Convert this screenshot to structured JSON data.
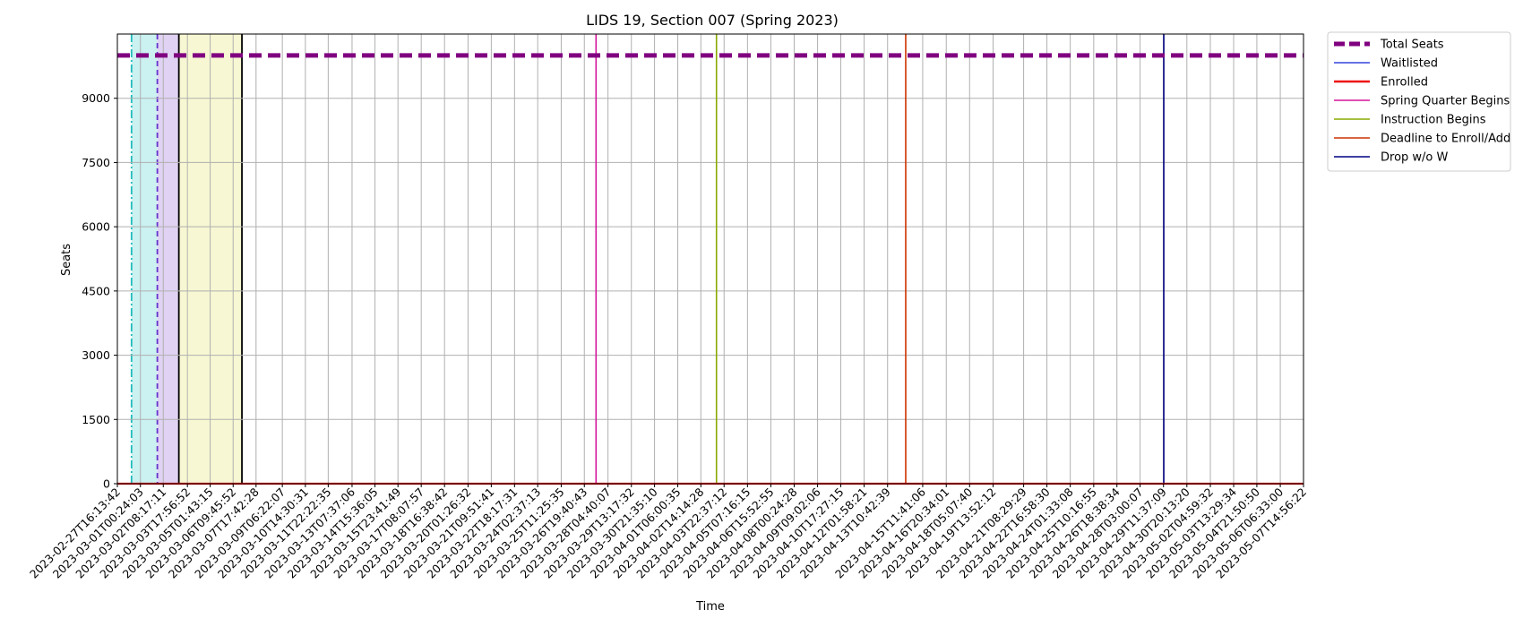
{
  "chart_data": {
    "type": "line",
    "title": "LIDS 19, Section 007 (Spring 2023)",
    "xlabel": "Time",
    "ylabel": "Seats",
    "ylim": [
      0,
      10500
    ],
    "yticks": [
      0,
      1500,
      3000,
      4500,
      6000,
      7500,
      9000
    ],
    "grid": true,
    "legend_placement": "outside-top-right",
    "x_ticks": [
      "2023-02-27T16:13:42",
      "2023-03-01T00:24:03",
      "2023-03-02T08:17:11",
      "2023-03-03T17:56:52",
      "2023-03-05T01:43:15",
      "2023-03-06T09:45:52",
      "2023-03-07T17:42:28",
      "2023-03-09T06:22:07",
      "2023-03-10T14:30:31",
      "2023-03-11T22:22:35",
      "2023-03-13T07:37:06",
      "2023-03-14T15:36:05",
      "2023-03-15T23:41:49",
      "2023-03-17T08:07:57",
      "2023-03-18T16:38:42",
      "2023-03-20T01:26:32",
      "2023-03-21T09:51:41",
      "2023-03-22T18:17:31",
      "2023-03-24T02:37:13",
      "2023-03-25T11:25:35",
      "2023-03-26T19:40:43",
      "2023-03-28T04:40:07",
      "2023-03-29T13:17:32",
      "2023-03-30T21:35:10",
      "2023-04-01T06:00:35",
      "2023-04-02T14:14:28",
      "2023-04-03T22:37:12",
      "2023-04-05T07:16:15",
      "2023-04-06T15:52:55",
      "2023-04-08T00:24:28",
      "2023-04-09T09:02:06",
      "2023-04-10T17:27:15",
      "2023-04-12T01:58:21",
      "2023-04-13T10:42:39",
      "2023-04-15T11:41:06",
      "2023-04-16T20:34:01",
      "2023-04-18T05:07:40",
      "2023-04-19T13:52:12",
      "2023-04-21T08:29:29",
      "2023-04-22T16:58:30",
      "2023-04-24T01:33:08",
      "2023-04-25T10:16:55",
      "2023-04-26T18:38:34",
      "2023-04-28T03:00:07",
      "2023-04-29T11:37:09",
      "2023-04-30T20:13:20",
      "2023-05-02T04:59:32",
      "2023-05-03T13:29:34",
      "2023-05-04T21:50:50",
      "2023-05-06T06:33:00",
      "2023-05-07T14:56:22"
    ],
    "series": [
      {
        "name": "Total Seats",
        "value": 10000,
        "color": "#800080",
        "style": "dashed-thick"
      },
      {
        "name": "Waitlisted",
        "value": 0,
        "color": "#3344dd",
        "style": "solid"
      },
      {
        "name": "Enrolled",
        "value": 0,
        "color": "#ee1111",
        "style": "solid-thick"
      }
    ],
    "events": [
      {
        "name": "Spring Quarter Begins",
        "date": "2023-03-27T12:00:00",
        "color": "#d4149a"
      },
      {
        "name": "Instruction Begins",
        "date": "2023-04-03T12:00:00",
        "color": "#88aa00"
      },
      {
        "name": "Deadline to Enroll/Add",
        "date": "2023-04-14T12:00:00",
        "color": "#cc3300"
      },
      {
        "name": "Drop w/o W",
        "date": "2023-04-29T12:00:00",
        "color": "#000080"
      }
    ],
    "phase_spans": [
      {
        "start": "2023-02-28T12:00:00",
        "end": "2023-03-02T00:00:00",
        "color": "#cbf1f1",
        "line_color": "#22bbbb"
      },
      {
        "start": "2023-03-02T00:00:00",
        "end": "2023-03-03T06:00:00",
        "color": "#e0d2f3",
        "line_color": "#6633cc"
      },
      {
        "start": "2023-03-03T06:00:00",
        "end": "2023-03-06T22:00:00",
        "color": "#f7f7d3",
        "line_color": "#000000"
      }
    ]
  }
}
